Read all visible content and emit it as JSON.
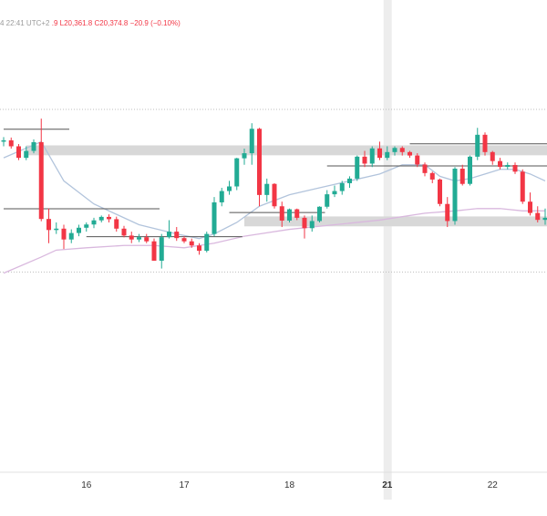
{
  "header": {
    "time_prefix": "4 22:41 UTC+2",
    "open_tail": ".9",
    "low": "L20,361.8",
    "close": "C20,374.8",
    "change": "−20.9 (−0.10%)"
  },
  "colors": {
    "up": "#22ab94",
    "down": "#f23645",
    "ma_fast": "#b2c4dc",
    "ma_slow": "#d9b8de",
    "level": "#555555",
    "zone": "#d8d8d8",
    "dotted": "#bdbdbd",
    "session_band": "#ededed"
  },
  "chart_data": {
    "type": "candlestick",
    "title": "",
    "xlabel": "",
    "ylabel": "",
    "ylim": [
      0,
      100
    ],
    "grid": false,
    "x_tick_labels": [
      {
        "label": "16",
        "index": 11,
        "bold": false
      },
      {
        "label": "17",
        "index": 24,
        "bold": false
      },
      {
        "label": "18",
        "index": 38,
        "bold": false
      },
      {
        "label": "21",
        "index": 51,
        "bold": true
      },
      {
        "label": "22",
        "index": 65,
        "bold": false
      }
    ],
    "session_break_index": 51,
    "candles": [
      [
        86.0,
        88.0,
        84.0,
        86.6
      ],
      [
        86.6,
        87.8,
        83.0,
        84.0
      ],
      [
        84.0,
        85.0,
        78.0,
        79.0
      ],
      [
        79.0,
        84.0,
        78.0,
        82.0
      ],
      [
        82.0,
        87.0,
        81.0,
        85.8
      ],
      [
        85.8,
        96.0,
        51.5,
        52.5
      ],
      [
        52.5,
        57.0,
        42.0,
        47.7
      ],
      [
        47.7,
        51.0,
        46.0,
        48.3
      ],
      [
        48.3,
        50.0,
        39.5,
        43.6
      ],
      [
        43.6,
        48.0,
        42.0,
        46.4
      ],
      [
        46.4,
        50.0,
        45.0,
        48.7
      ],
      [
        48.7,
        51.0,
        47.0,
        50.1
      ],
      [
        50.1,
        53.0,
        48.5,
        51.9
      ],
      [
        51.9,
        54.0,
        51.0,
        53.4
      ],
      [
        53.4,
        54.5,
        51.0,
        52.4
      ],
      [
        52.4,
        53.5,
        47.0,
        48.3
      ],
      [
        48.3,
        49.5,
        44.5,
        45.3
      ],
      [
        45.3,
        47.0,
        42.0,
        43.6
      ],
      [
        43.6,
        46.0,
        42.5,
        44.6
      ],
      [
        44.6,
        46.0,
        42.0,
        42.8
      ],
      [
        42.8,
        44.0,
        35.0,
        34.4
      ],
      [
        34.4,
        46.0,
        31.0,
        44.6
      ],
      [
        44.6,
        52.0,
        44.0,
        47.0
      ],
      [
        47.0,
        49.0,
        43.0,
        44.2
      ],
      [
        44.2,
        45.0,
        42.0,
        42.8
      ],
      [
        42.8,
        44.0,
        40.0,
        41.0
      ],
      [
        41.0,
        42.0,
        37.0,
        38.7
      ],
      [
        38.7,
        47.0,
        38.0,
        46.0
      ],
      [
        46.0,
        62.0,
        45.0,
        59.7
      ],
      [
        59.7,
        66.0,
        58.0,
        64.6
      ],
      [
        64.6,
        69.0,
        63.0,
        66.6
      ],
      [
        66.6,
        79.0,
        65.0,
        78.8
      ],
      [
        78.8,
        83.0,
        76.0,
        81.0
      ],
      [
        81.0,
        94.0,
        76.0,
        91.6
      ],
      [
        91.6,
        92.0,
        58.0,
        62.9
      ],
      [
        62.9,
        70.0,
        60.0,
        67.7
      ],
      [
        67.7,
        68.0,
        57.0,
        58.0
      ],
      [
        58.0,
        60.0,
        49.0,
        51.8
      ],
      [
        51.8,
        57.0,
        51.0,
        56.7
      ],
      [
        56.7,
        57.0,
        52.0,
        53.0
      ],
      [
        53.0,
        54.0,
        44.0,
        48.5
      ],
      [
        48.5,
        54.0,
        47.0,
        51.6
      ],
      [
        51.6,
        58.0,
        51.0,
        57.8
      ],
      [
        57.8,
        65.0,
        57.0,
        63.2
      ],
      [
        63.2,
        67.0,
        62.0,
        64.6
      ],
      [
        64.6,
        69.0,
        63.0,
        68.0
      ],
      [
        68.0,
        71.0,
        66.0,
        70.0
      ],
      [
        70.0,
        80.0,
        69.0,
        79.5
      ],
      [
        79.5,
        82.0,
        75.0,
        76.5
      ],
      [
        76.5,
        84.0,
        75.0,
        83.1
      ],
      [
        83.1,
        86.0,
        78.0,
        79.0
      ],
      [
        79.0,
        84.0,
        78.0,
        81.5
      ],
      [
        81.5,
        84.0,
        80.0,
        83.3
      ],
      [
        83.3,
        84.0,
        80.0,
        81.5
      ],
      [
        81.5,
        82.0,
        79.0,
        80.0
      ],
      [
        80.0,
        81.0,
        75.0,
        76.1
      ],
      [
        76.1,
        77.0,
        71.0,
        72.4
      ],
      [
        72.4,
        73.0,
        68.0,
        69.6
      ],
      [
        69.6,
        70.0,
        58.0,
        59.0
      ],
      [
        59.0,
        62.0,
        49.0,
        51.6
      ],
      [
        51.6,
        75.0,
        50.0,
        74.3
      ],
      [
        74.3,
        76.0,
        67.0,
        67.7
      ],
      [
        67.7,
        80.0,
        67.0,
        79.5
      ],
      [
        79.5,
        92.0,
        78.0,
        89.0
      ],
      [
        89.0,
        90.0,
        80.0,
        81.5
      ],
      [
        81.5,
        82.0,
        76.0,
        77.6
      ],
      [
        77.6,
        79.0,
        74.0,
        75.1
      ],
      [
        75.1,
        77.0,
        74.0,
        75.9
      ],
      [
        75.9,
        77.0,
        72.0,
        73.0
      ],
      [
        73.0,
        74.0,
        59.0,
        60.0
      ],
      [
        60.0,
        64.0,
        54.0,
        55.1
      ],
      [
        55.1,
        58.0,
        51.0,
        52.1
      ],
      [
        52.1,
        57.0,
        50.0,
        53.0
      ]
    ],
    "ma_fast": [
      [
        0,
        79
      ],
      [
        5,
        86
      ],
      [
        8,
        69
      ],
      [
        12,
        59
      ],
      [
        18,
        50
      ],
      [
        23,
        46
      ],
      [
        26,
        44
      ],
      [
        28,
        46
      ],
      [
        31,
        51
      ],
      [
        34,
        58
      ],
      [
        38,
        63
      ],
      [
        42,
        66
      ],
      [
        46,
        69
      ],
      [
        50,
        72
      ],
      [
        53,
        76
      ],
      [
        56,
        76
      ],
      [
        58,
        71
      ],
      [
        60,
        69
      ],
      [
        62,
        70
      ],
      [
        64,
        72
      ],
      [
        66,
        74
      ],
      [
        68,
        74
      ],
      [
        70,
        72
      ],
      [
        72,
        69
      ]
    ],
    "ma_slow": [
      [
        0,
        29
      ],
      [
        5,
        36
      ],
      [
        7,
        39
      ],
      [
        11,
        40
      ],
      [
        16,
        41
      ],
      [
        20,
        41
      ],
      [
        24,
        40
      ],
      [
        28,
        42
      ],
      [
        32,
        45
      ],
      [
        38,
        48
      ],
      [
        44,
        50
      ],
      [
        50,
        52
      ],
      [
        56,
        55
      ],
      [
        60,
        56
      ],
      [
        63,
        57
      ],
      [
        66,
        57
      ],
      [
        69,
        56
      ],
      [
        72,
        56
      ]
    ],
    "levels": [
      {
        "name": "level-left-top",
        "from": 0,
        "to": 8,
        "value": 91.4
      },
      {
        "name": "level-left-mid",
        "from": 0,
        "to": 20,
        "value": 56.9
      },
      {
        "name": "level-17-support",
        "from": 11,
        "to": 31,
        "value": 44.8
      },
      {
        "name": "level-18-range",
        "from": 30,
        "to": 42,
        "value": 55.3
      },
      {
        "name": "level-21-top",
        "from": 43,
        "to": 72,
        "value": 75.5
      },
      {
        "name": "level-22-top",
        "from": 54,
        "to": 72,
        "value": 85.1
      }
    ],
    "zones": [
      {
        "name": "resistance-zone",
        "from": 3,
        "to": 72,
        "top": 84.4,
        "bottom": 80.1
      },
      {
        "name": "support-zone",
        "from": 32,
        "to": 72,
        "top": 53.6,
        "bottom": 49.3
      }
    ],
    "dotted_levels": [
      100,
      29.5
    ]
  }
}
